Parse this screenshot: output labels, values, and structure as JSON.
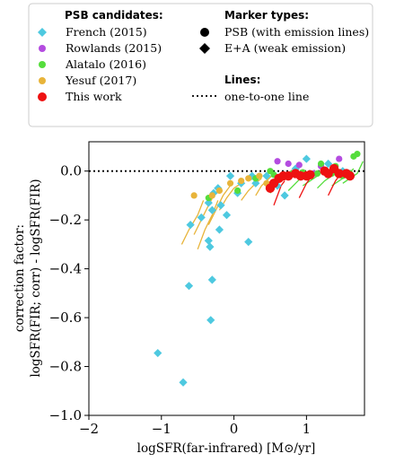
{
  "legend": {
    "candidates_header": "PSB candidates:",
    "marker_header": "Marker types:",
    "lines_header": "Lines:",
    "entries": [
      {
        "label": "French (2015)",
        "color": "#4ec9e0",
        "marker": "diamond"
      },
      {
        "label": "Rowlands (2015)",
        "color": "#b44ce0",
        "marker": "circle"
      },
      {
        "label": "Alatalo (2016)",
        "color": "#55dd3c",
        "marker": "circle"
      },
      {
        "label": "Yesuf (2017)",
        "color": "#e8b43a",
        "marker": "circle"
      },
      {
        "label": "This work",
        "color": "#ee1111",
        "marker": "circle"
      }
    ],
    "marker_types": [
      {
        "label": "PSB (with emission lines)",
        "marker": "circle"
      },
      {
        "label": "E+A (weak emission)",
        "marker": "diamond"
      }
    ],
    "lines": [
      {
        "label": "one-to-one line",
        "style": "dotted"
      }
    ]
  },
  "chart_data": {
    "type": "scatter",
    "xlabel": "logSFR(far-infrared) [M⊙/yr]",
    "ylabel_lines": [
      "correction factor:",
      "logSFR(FIR; corr) - logSFR(FIR)"
    ],
    "xlim": [
      -2,
      1.8
    ],
    "ylim": [
      -1.0,
      0.12
    ],
    "xticks": [
      -2,
      -1,
      0,
      1
    ],
    "yticks": [
      0.0,
      -0.2,
      -0.4,
      -0.6,
      -0.8,
      -1.0
    ],
    "ytick_labels": [
      "0.0",
      "−0.2",
      "−0.4",
      "−0.6",
      "−0.8",
      "−1.0"
    ],
    "xtick_labels": [
      "−2",
      "−1",
      "0",
      "1"
    ],
    "one_to_one_y": 0.0,
    "series": [
      {
        "name": "French (2015)",
        "color": "#4ec9e0",
        "marker": "diamond",
        "points": [
          [
            -1.05,
            -0.745
          ],
          [
            -0.7,
            -0.865
          ],
          [
            -0.62,
            -0.47
          ],
          [
            -0.32,
            -0.61
          ],
          [
            -0.3,
            -0.445
          ],
          [
            -0.35,
            -0.285
          ],
          [
            -0.33,
            -0.31
          ],
          [
            -0.6,
            -0.22
          ],
          [
            -0.45,
            -0.19
          ],
          [
            -0.35,
            -0.13
          ],
          [
            -0.3,
            -0.16
          ],
          [
            -0.28,
            -0.09
          ],
          [
            -0.2,
            -0.24
          ],
          [
            -0.18,
            -0.14
          ],
          [
            -0.22,
            -0.07
          ],
          [
            -0.1,
            -0.18
          ],
          [
            -0.05,
            -0.02
          ],
          [
            0.05,
            -0.09
          ],
          [
            0.1,
            -0.05
          ],
          [
            0.2,
            -0.29
          ],
          [
            0.25,
            -0.02
          ],
          [
            0.3,
            -0.05
          ],
          [
            0.45,
            -0.02
          ],
          [
            0.6,
            -0.06
          ],
          [
            0.7,
            -0.1
          ],
          [
            0.85,
            0.01
          ],
          [
            1.0,
            0.05
          ],
          [
            1.3,
            0.03
          ],
          [
            1.5,
            0.0
          ]
        ]
      },
      {
        "name": "Rowlands (2015)",
        "color": "#b44ce0",
        "marker": "circle",
        "points": [
          [
            0.6,
            0.04
          ],
          [
            0.75,
            0.03
          ],
          [
            0.9,
            0.025
          ],
          [
            1.1,
            -0.01
          ],
          [
            1.2,
            0.02
          ],
          [
            1.45,
            0.05
          ]
        ]
      },
      {
        "name": "Alatalo (2016)",
        "color": "#55dd3c",
        "marker": "circle",
        "points": [
          [
            -0.35,
            -0.11
          ],
          [
            0.05,
            -0.08
          ],
          [
            0.3,
            -0.03
          ],
          [
            0.5,
            0.0
          ],
          [
            0.55,
            -0.015
          ],
          [
            0.7,
            -0.02
          ],
          [
            0.8,
            -0.01
          ],
          [
            0.95,
            -0.005
          ],
          [
            1.05,
            -0.02
          ],
          [
            1.15,
            -0.01
          ],
          [
            1.25,
            0.0
          ],
          [
            1.35,
            -0.01
          ],
          [
            1.4,
            0.02
          ],
          [
            1.5,
            -0.02
          ],
          [
            1.6,
            -0.01
          ],
          [
            1.65,
            0.06
          ],
          [
            1.7,
            0.07
          ],
          [
            1.2,
            0.03
          ]
        ]
      },
      {
        "name": "Yesuf (2017)",
        "color": "#e8b43a",
        "marker": "circle",
        "points": [
          [
            -0.55,
            -0.1
          ],
          [
            -0.3,
            -0.1
          ],
          [
            -0.2,
            -0.08
          ],
          [
            -0.05,
            -0.05
          ],
          [
            0.1,
            -0.04
          ],
          [
            0.2,
            -0.03
          ],
          [
            0.35,
            -0.02
          ],
          [
            0.45,
            -0.05
          ]
        ]
      },
      {
        "name": "This work",
        "color": "#ee1111",
        "marker": "circle",
        "points": [
          [
            0.5,
            -0.07
          ],
          [
            0.55,
            -0.05
          ],
          [
            0.62,
            -0.03
          ],
          [
            0.68,
            -0.02
          ],
          [
            0.75,
            -0.02
          ],
          [
            0.85,
            -0.01
          ],
          [
            0.92,
            -0.02
          ],
          [
            1.0,
            -0.02
          ],
          [
            1.05,
            -0.015
          ],
          [
            1.25,
            0.0
          ],
          [
            1.3,
            -0.01
          ],
          [
            1.38,
            0.01
          ],
          [
            1.45,
            -0.01
          ],
          [
            1.55,
            -0.01
          ],
          [
            1.6,
            -0.02
          ]
        ]
      }
    ],
    "tracks": [
      {
        "color": "#e8b43a",
        "points": [
          [
            -0.72,
            -0.3
          ],
          [
            -0.62,
            -0.24
          ],
          [
            -0.5,
            -0.18
          ],
          [
            -0.42,
            -0.12
          ]
        ]
      },
      {
        "color": "#e8b43a",
        "points": [
          [
            -0.55,
            -0.26
          ],
          [
            -0.45,
            -0.2
          ],
          [
            -0.35,
            -0.14
          ],
          [
            -0.28,
            -0.1
          ]
        ]
      },
      {
        "color": "#e8b43a",
        "points": [
          [
            -0.5,
            -0.32
          ],
          [
            -0.4,
            -0.24
          ],
          [
            -0.3,
            -0.18
          ],
          [
            -0.22,
            -0.12
          ]
        ]
      },
      {
        "color": "#e8b43a",
        "points": [
          [
            -0.35,
            -0.22
          ],
          [
            -0.25,
            -0.16
          ],
          [
            -0.15,
            -0.1
          ],
          [
            -0.05,
            -0.06
          ]
        ]
      },
      {
        "color": "#e8b43a",
        "points": [
          [
            -0.2,
            -0.16
          ],
          [
            -0.1,
            -0.11
          ],
          [
            0.0,
            -0.07
          ],
          [
            0.1,
            -0.05
          ]
        ]
      },
      {
        "color": "#e8b43a",
        "points": [
          [
            0.1,
            -0.12
          ],
          [
            0.2,
            -0.08
          ],
          [
            0.3,
            -0.05
          ],
          [
            0.38,
            -0.03
          ]
        ]
      },
      {
        "color": "#e8b43a",
        "points": [
          [
            0.3,
            -0.1
          ],
          [
            0.38,
            -0.06
          ],
          [
            0.45,
            -0.04
          ],
          [
            0.52,
            -0.02
          ]
        ]
      },
      {
        "color": "#55dd3c",
        "points": [
          [
            0.5,
            -0.09
          ],
          [
            0.6,
            -0.05
          ],
          [
            0.7,
            -0.03
          ],
          [
            0.78,
            -0.01
          ]
        ]
      },
      {
        "color": "#55dd3c",
        "points": [
          [
            0.75,
            -0.08
          ],
          [
            0.85,
            -0.05
          ],
          [
            0.95,
            -0.02
          ],
          [
            1.05,
            0.0
          ]
        ]
      },
      {
        "color": "#55dd3c",
        "points": [
          [
            0.95,
            -0.06
          ],
          [
            1.05,
            -0.04
          ],
          [
            1.15,
            -0.02
          ],
          [
            1.25,
            0.01
          ]
        ]
      },
      {
        "color": "#55dd3c",
        "points": [
          [
            1.15,
            -0.07
          ],
          [
            1.25,
            -0.04
          ],
          [
            1.35,
            -0.02
          ],
          [
            1.45,
            0.0
          ]
        ]
      },
      {
        "color": "#55dd3c",
        "points": [
          [
            1.35,
            -0.06
          ],
          [
            1.45,
            -0.04
          ],
          [
            1.55,
            -0.02
          ],
          [
            1.65,
            0.01
          ]
        ]
      },
      {
        "color": "#55dd3c",
        "points": [
          [
            1.5,
            -0.05
          ],
          [
            1.6,
            -0.03
          ],
          [
            1.7,
            -0.01
          ],
          [
            1.78,
            0.04
          ]
        ]
      },
      {
        "color": "#ee1111",
        "points": [
          [
            0.55,
            -0.14
          ],
          [
            0.6,
            -0.1
          ],
          [
            0.65,
            -0.06
          ],
          [
            0.7,
            -0.04
          ]
        ]
      },
      {
        "color": "#ee1111",
        "points": [
          [
            0.9,
            -0.11
          ],
          [
            0.95,
            -0.08
          ],
          [
            1.0,
            -0.05
          ],
          [
            1.05,
            -0.03
          ]
        ]
      },
      {
        "color": "#ee1111",
        "points": [
          [
            1.3,
            -0.1
          ],
          [
            1.35,
            -0.07
          ],
          [
            1.4,
            -0.04
          ],
          [
            1.45,
            -0.02
          ]
        ]
      }
    ]
  }
}
